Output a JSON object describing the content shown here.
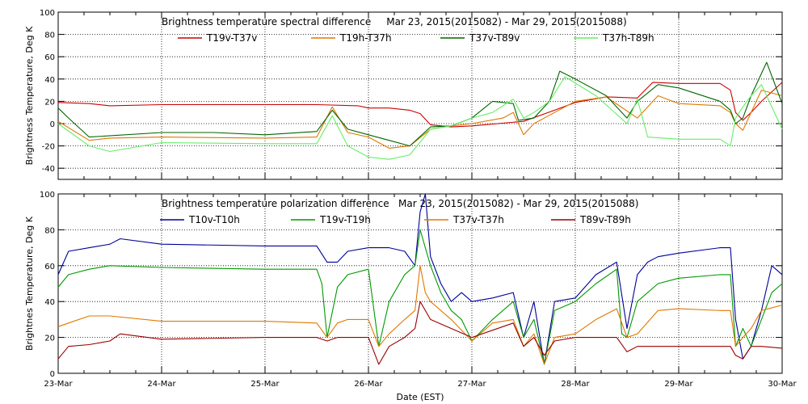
{
  "xlabel": "Date (EST)",
  "x_tick_labels": [
    "23-Mar",
    "24-Mar",
    "25-Mar",
    "26-Mar",
    "27-Mar",
    "28-Mar",
    "29-Mar",
    "30-Mar"
  ],
  "chart_data": [
    {
      "type": "line",
      "title": "Brightness temperature spectral difference     Mar 23, 2015(2015082) - Mar 29, 2015(2015088)",
      "ylabel": "Brightness Temperature, Deg K",
      "ylim": [
        -50,
        100
      ],
      "xlim": [
        0,
        7
      ],
      "y_ticks": [
        -40,
        -20,
        0,
        20,
        40,
        60,
        80,
        100
      ],
      "grid": true,
      "legend_placement": "top",
      "series": [
        {
          "name": "T19v-T37v",
          "color": "#cc0000",
          "x": [
            0,
            0.3,
            0.5,
            1,
            2,
            2.5,
            2.9,
            3.0,
            3.2,
            3.4,
            3.5,
            3.6,
            3.8,
            4.0,
            4.5,
            4.8,
            5.0,
            5.3,
            5.6,
            5.75,
            6.0,
            6.4,
            6.5,
            6.55,
            6.62,
            6.7,
            6.8,
            7.0
          ],
          "y": [
            19,
            18,
            16,
            17,
            17,
            17,
            16,
            14,
            14,
            12,
            9,
            -1,
            -3,
            -2,
            2,
            12,
            19,
            24,
            23,
            37,
            36,
            36,
            30,
            10,
            3,
            10,
            20,
            37
          ]
        },
        {
          "name": "T19h-T37h",
          "color": "#e07800",
          "x": [
            0,
            0.3,
            0.5,
            1,
            2,
            2.5,
            2.65,
            2.8,
            3.0,
            3.2,
            3.4,
            3.6,
            3.8,
            4.0,
            4.3,
            4.4,
            4.5,
            4.6,
            4.8,
            5.0,
            5.3,
            5.6,
            5.8,
            6.0,
            6.4,
            6.5,
            6.55,
            6.62,
            6.7,
            6.8,
            7.0
          ],
          "y": [
            2,
            -15,
            -13,
            -12,
            -13,
            -12,
            15,
            -8,
            -12,
            -22,
            -20,
            -5,
            -2,
            0,
            5,
            10,
            -10,
            0,
            10,
            20,
            24,
            5,
            25,
            18,
            16,
            10,
            0,
            -6,
            10,
            30,
            25
          ]
        },
        {
          "name": "T37v-T89v",
          "color": "#006600",
          "x": [
            0,
            0.1,
            0.3,
            1,
            1.5,
            2,
            2.5,
            2.65,
            2.8,
            3.0,
            3.2,
            3.4,
            3.6,
            3.8,
            4.0,
            4.2,
            4.4,
            4.45,
            4.6,
            4.75,
            4.85,
            5.0,
            5.3,
            5.5,
            5.6,
            5.8,
            6.0,
            6.4,
            6.5,
            6.55,
            6.62,
            6.7,
            6.85,
            7.0
          ],
          "y": [
            14,
            5,
            -12,
            -8,
            -8,
            -10,
            -7,
            12,
            -5,
            -10,
            -15,
            -20,
            -3,
            -2,
            5,
            20,
            18,
            3,
            5,
            20,
            47,
            40,
            25,
            5,
            20,
            35,
            32,
            20,
            12,
            0,
            5,
            25,
            55,
            18
          ]
        },
        {
          "name": "T37h-T89h",
          "color": "#66ee66",
          "x": [
            0,
            0.3,
            0.5,
            1,
            2,
            2.5,
            2.65,
            2.8,
            3.0,
            3.2,
            3.4,
            3.6,
            3.8,
            4.0,
            4.2,
            4.4,
            4.5,
            4.6,
            4.75,
            4.9,
            5.2,
            5.5,
            5.6,
            5.7,
            6.0,
            6.4,
            6.5,
            6.55,
            6.62,
            6.7,
            6.8,
            7.0
          ],
          "y": [
            0,
            -20,
            -25,
            -17,
            -18,
            -18,
            7,
            -20,
            -30,
            -32,
            -28,
            -5,
            -2,
            5,
            10,
            22,
            5,
            10,
            20,
            42,
            25,
            0,
            22,
            -12,
            -14,
            -14,
            -20,
            5,
            15,
            25,
            35,
            -5
          ]
        }
      ]
    },
    {
      "type": "line",
      "title": "Brightness temperature polarization difference   Mar 23, 2015(2015082) - Mar 29, 2015(2015088)",
      "ylabel": "Brightnes Temperature, Deg K",
      "ylim": [
        0,
        100
      ],
      "xlim": [
        0,
        7
      ],
      "y_ticks": [
        0,
        20,
        40,
        60,
        80,
        100
      ],
      "grid": true,
      "legend_placement": "top",
      "series": [
        {
          "name": "T10v-T10h",
          "color": "#000099",
          "x": [
            0,
            0.1,
            0.3,
            0.5,
            0.6,
            1,
            2,
            2.5,
            2.6,
            2.7,
            2.8,
            3.0,
            3.2,
            3.35,
            3.45,
            3.5,
            3.55,
            3.6,
            3.7,
            3.8,
            3.9,
            4.0,
            4.2,
            4.4,
            4.5,
            4.6,
            4.7,
            4.8,
            5.0,
            5.2,
            5.4,
            5.5,
            5.55,
            5.6,
            5.7,
            5.8,
            6.0,
            6.4,
            6.5,
            6.55,
            6.62,
            6.7,
            6.8,
            6.9,
            7.0
          ],
          "y": [
            55,
            68,
            70,
            72,
            75,
            72,
            71,
            71,
            62,
            62,
            68,
            70,
            70,
            68,
            60,
            90,
            100,
            65,
            50,
            40,
            45,
            40,
            42,
            45,
            20,
            40,
            5,
            40,
            42,
            55,
            62,
            25,
            40,
            55,
            62,
            65,
            67,
            70,
            70,
            30,
            8,
            15,
            35,
            60,
            55
          ]
        },
        {
          "name": "T19v-T19h",
          "color": "#009900",
          "x": [
            0,
            0.1,
            0.3,
            0.5,
            1,
            2,
            2.5,
            2.55,
            2.6,
            2.7,
            2.8,
            3.0,
            3.1,
            3.2,
            3.35,
            3.45,
            3.5,
            3.6,
            3.7,
            3.8,
            3.9,
            4.0,
            4.2,
            4.4,
            4.5,
            4.6,
            4.7,
            4.8,
            5.0,
            5.2,
            5.4,
            5.45,
            5.5,
            5.6,
            5.8,
            6.0,
            6.4,
            6.5,
            6.55,
            6.62,
            6.7,
            6.8,
            6.9,
            7.0
          ],
          "y": [
            48,
            55,
            58,
            60,
            59,
            58,
            58,
            50,
            20,
            48,
            55,
            58,
            15,
            40,
            55,
            60,
            80,
            60,
            45,
            35,
            30,
            18,
            30,
            40,
            20,
            30,
            5,
            35,
            40,
            50,
            58,
            22,
            20,
            40,
            50,
            53,
            55,
            55,
            15,
            25,
            15,
            30,
            45,
            50
          ]
        },
        {
          "name": "T37v-T37h",
          "color": "#e07800",
          "x": [
            0,
            0.1,
            0.3,
            0.5,
            1,
            2,
            2.5,
            2.6,
            2.7,
            2.8,
            3.0,
            3.1,
            3.2,
            3.35,
            3.45,
            3.5,
            3.55,
            3.6,
            3.8,
            4.0,
            4.2,
            4.4,
            4.5,
            4.6,
            4.7,
            4.8,
            5.0,
            5.2,
            5.4,
            5.5,
            5.6,
            5.8,
            6.0,
            6.4,
            6.5,
            6.55,
            6.62,
            6.7,
            6.8,
            7.0
          ],
          "y": [
            26,
            28,
            32,
            32,
            29,
            29,
            28,
            20,
            28,
            30,
            30,
            15,
            22,
            30,
            35,
            60,
            45,
            40,
            30,
            18,
            28,
            30,
            15,
            22,
            5,
            20,
            22,
            30,
            36,
            20,
            22,
            35,
            36,
            35,
            35,
            15,
            20,
            25,
            35,
            38
          ]
        },
        {
          "name": "T89v-T89h",
          "color": "#990000",
          "x": [
            0,
            0.1,
            0.3,
            0.5,
            0.6,
            1,
            2,
            2.5,
            2.6,
            2.7,
            2.8,
            3.0,
            3.1,
            3.2,
            3.35,
            3.45,
            3.5,
            3.6,
            3.8,
            4.0,
            4.2,
            4.4,
            4.5,
            4.6,
            4.7,
            4.8,
            5.0,
            5.2,
            5.4,
            5.5,
            5.6,
            5.8,
            6.0,
            6.4,
            6.5,
            6.55,
            6.62,
            6.7,
            6.8,
            7.0
          ],
          "y": [
            8,
            15,
            16,
            18,
            22,
            19,
            20,
            20,
            18,
            20,
            20,
            20,
            5,
            15,
            20,
            25,
            40,
            30,
            25,
            20,
            24,
            28,
            15,
            20,
            10,
            18,
            20,
            20,
            20,
            12,
            15,
            15,
            15,
            15,
            15,
            10,
            8,
            15,
            15,
            14
          ]
        }
      ]
    }
  ]
}
